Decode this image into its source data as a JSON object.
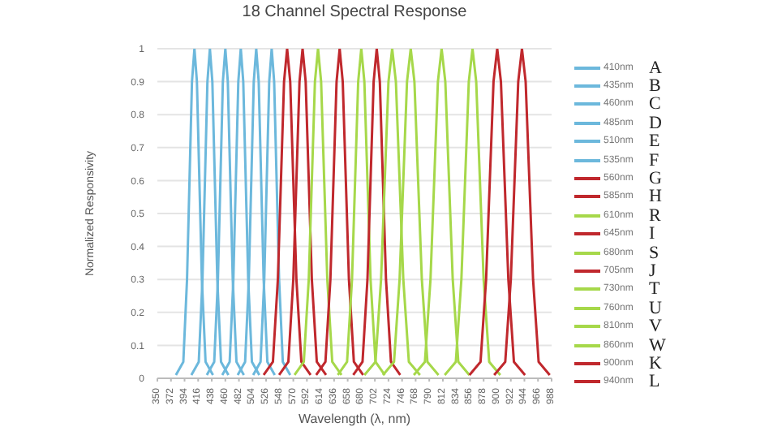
{
  "chart_data": {
    "type": "line",
    "title": "18 Channel Spectral Response",
    "xlabel": "Wavelength (λ, nm)",
    "ylabel": "Normalized Responsivity",
    "xlim": [
      350,
      988
    ],
    "xticks": [
      350,
      372,
      394,
      416,
      438,
      460,
      482,
      504,
      526,
      548,
      570,
      592,
      614,
      636,
      658,
      680,
      702,
      724,
      746,
      768,
      790,
      812,
      834,
      856,
      878,
      900,
      922,
      944,
      966,
      988
    ],
    "ylim": [
      0,
      1
    ],
    "yticks": [
      0,
      0.1,
      0.2,
      0.3,
      0.4,
      0.5,
      0.6,
      0.7,
      0.8,
      0.9,
      1
    ],
    "grid": "y",
    "legend": "right",
    "marker": "none",
    "line_style": "solid",
    "annotations": [
      "A",
      "B",
      "C",
      "D",
      "E",
      "F",
      "G",
      "H",
      "R",
      "I",
      "S",
      "J",
      "T",
      "U",
      "V",
      "W",
      "K",
      "L"
    ],
    "series": [
      {
        "name": "410nm",
        "color": "#6cb8dc",
        "x": [
          380,
          392,
          398,
          402,
          406,
          410,
          414,
          418,
          422,
          428,
          440
        ],
        "values": [
          0.01,
          0.05,
          0.3,
          0.6,
          0.9,
          1,
          0.9,
          0.6,
          0.3,
          0.05,
          0.01
        ]
      },
      {
        "name": "435nm",
        "color": "#6cb8dc",
        "x": [
          405,
          417,
          423,
          427,
          431,
          435,
          439,
          443,
          447,
          453,
          465
        ],
        "values": [
          0.01,
          0.05,
          0.3,
          0.6,
          0.9,
          1,
          0.9,
          0.6,
          0.3,
          0.05,
          0.01
        ]
      },
      {
        "name": "460nm",
        "color": "#6cb8dc",
        "x": [
          430,
          442,
          448,
          452,
          456,
          460,
          464,
          468,
          472,
          478,
          490
        ],
        "values": [
          0.01,
          0.05,
          0.3,
          0.6,
          0.9,
          1,
          0.9,
          0.6,
          0.3,
          0.05,
          0.01
        ]
      },
      {
        "name": "485nm",
        "color": "#6cb8dc",
        "x": [
          455,
          467,
          473,
          477,
          481,
          485,
          489,
          493,
          497,
          503,
          515
        ],
        "values": [
          0.01,
          0.05,
          0.3,
          0.6,
          0.9,
          1,
          0.9,
          0.6,
          0.3,
          0.05,
          0.01
        ]
      },
      {
        "name": "510nm",
        "color": "#6cb8dc",
        "x": [
          480,
          492,
          498,
          502,
          506,
          510,
          514,
          518,
          522,
          528,
          540
        ],
        "values": [
          0.01,
          0.05,
          0.3,
          0.6,
          0.9,
          1,
          0.9,
          0.6,
          0.3,
          0.05,
          0.01
        ]
      },
      {
        "name": "535nm",
        "color": "#6cb8dc",
        "x": [
          505,
          517,
          523,
          527,
          531,
          535,
          539,
          543,
          547,
          553,
          565
        ],
        "values": [
          0.01,
          0.05,
          0.3,
          0.6,
          0.9,
          1,
          0.9,
          0.6,
          0.3,
          0.05,
          0.01
        ]
      },
      {
        "name": "560nm",
        "color": "#c0282d",
        "x": [
          522,
          537,
          545,
          550,
          555,
          560,
          565,
          570,
          575,
          583,
          598
        ],
        "values": [
          0.01,
          0.05,
          0.3,
          0.6,
          0.9,
          1,
          0.9,
          0.6,
          0.3,
          0.05,
          0.01
        ]
      },
      {
        "name": "585nm",
        "color": "#c0282d",
        "x": [
          547,
          562,
          570,
          575,
          580,
          585,
          590,
          595,
          600,
          608,
          623
        ],
        "values": [
          0.01,
          0.05,
          0.3,
          0.6,
          0.9,
          1,
          0.9,
          0.6,
          0.3,
          0.05,
          0.01
        ]
      },
      {
        "name": "610nm",
        "color": "#a6d84a",
        "x": [
          572,
          587,
          595,
          600,
          605,
          610,
          615,
          620,
          625,
          633,
          648
        ],
        "values": [
          0.01,
          0.05,
          0.3,
          0.6,
          0.9,
          1,
          0.9,
          0.6,
          0.3,
          0.05,
          0.01
        ]
      },
      {
        "name": "645nm",
        "color": "#c0282d",
        "x": [
          607,
          622,
          630,
          635,
          640,
          645,
          650,
          655,
          660,
          668,
          683
        ],
        "values": [
          0.01,
          0.05,
          0.3,
          0.6,
          0.9,
          1,
          0.9,
          0.6,
          0.3,
          0.05,
          0.01
        ]
      },
      {
        "name": "680nm",
        "color": "#a6d84a",
        "x": [
          642,
          657,
          665,
          670,
          675,
          680,
          685,
          690,
          695,
          703,
          718
        ],
        "values": [
          0.01,
          0.05,
          0.3,
          0.6,
          0.9,
          1,
          0.9,
          0.6,
          0.3,
          0.05,
          0.01
        ]
      },
      {
        "name": "705nm",
        "color": "#c0282d",
        "x": [
          667,
          682,
          690,
          695,
          700,
          705,
          710,
          715,
          720,
          728,
          743
        ],
        "values": [
          0.01,
          0.05,
          0.3,
          0.6,
          0.9,
          1,
          0.9,
          0.6,
          0.3,
          0.05,
          0.01
        ]
      },
      {
        "name": "730nm",
        "color": "#a6d84a",
        "x": [
          685,
          703,
          712,
          718,
          724,
          730,
          736,
          742,
          748,
          757,
          775
        ],
        "values": [
          0.01,
          0.05,
          0.3,
          0.6,
          0.9,
          1,
          0.9,
          0.6,
          0.3,
          0.05,
          0.01
        ]
      },
      {
        "name": "760nm",
        "color": "#a6d84a",
        "x": [
          715,
          733,
          742,
          748,
          754,
          760,
          766,
          772,
          778,
          787,
          805
        ],
        "values": [
          0.01,
          0.05,
          0.3,
          0.6,
          0.9,
          1,
          0.9,
          0.6,
          0.3,
          0.05,
          0.01
        ]
      },
      {
        "name": "810nm",
        "color": "#a6d84a",
        "x": [
          765,
          783,
          792,
          798,
          804,
          810,
          816,
          822,
          828,
          837,
          855
        ],
        "values": [
          0.01,
          0.05,
          0.3,
          0.6,
          0.9,
          1,
          0.9,
          0.6,
          0.3,
          0.05,
          0.01
        ]
      },
      {
        "name": "860nm",
        "color": "#a6d84a",
        "x": [
          815,
          833,
          842,
          848,
          854,
          860,
          866,
          872,
          878,
          887,
          905
        ],
        "values": [
          0.01,
          0.05,
          0.3,
          0.6,
          0.9,
          1,
          0.9,
          0.6,
          0.3,
          0.05,
          0.01
        ]
      },
      {
        "name": "900nm",
        "color": "#c0282d",
        "x": [
          855,
          873,
          882,
          888,
          894,
          900,
          906,
          912,
          918,
          927,
          945
        ],
        "values": [
          0.01,
          0.05,
          0.3,
          0.6,
          0.9,
          1,
          0.9,
          0.6,
          0.3,
          0.05,
          0.01
        ]
      },
      {
        "name": "940nm",
        "color": "#c0282d",
        "x": [
          895,
          913,
          922,
          928,
          934,
          940,
          946,
          952,
          958,
          967,
          985
        ],
        "values": [
          0.01,
          0.05,
          0.3,
          0.6,
          0.9,
          1,
          0.9,
          0.6,
          0.3,
          0.05,
          0.01
        ]
      }
    ]
  }
}
